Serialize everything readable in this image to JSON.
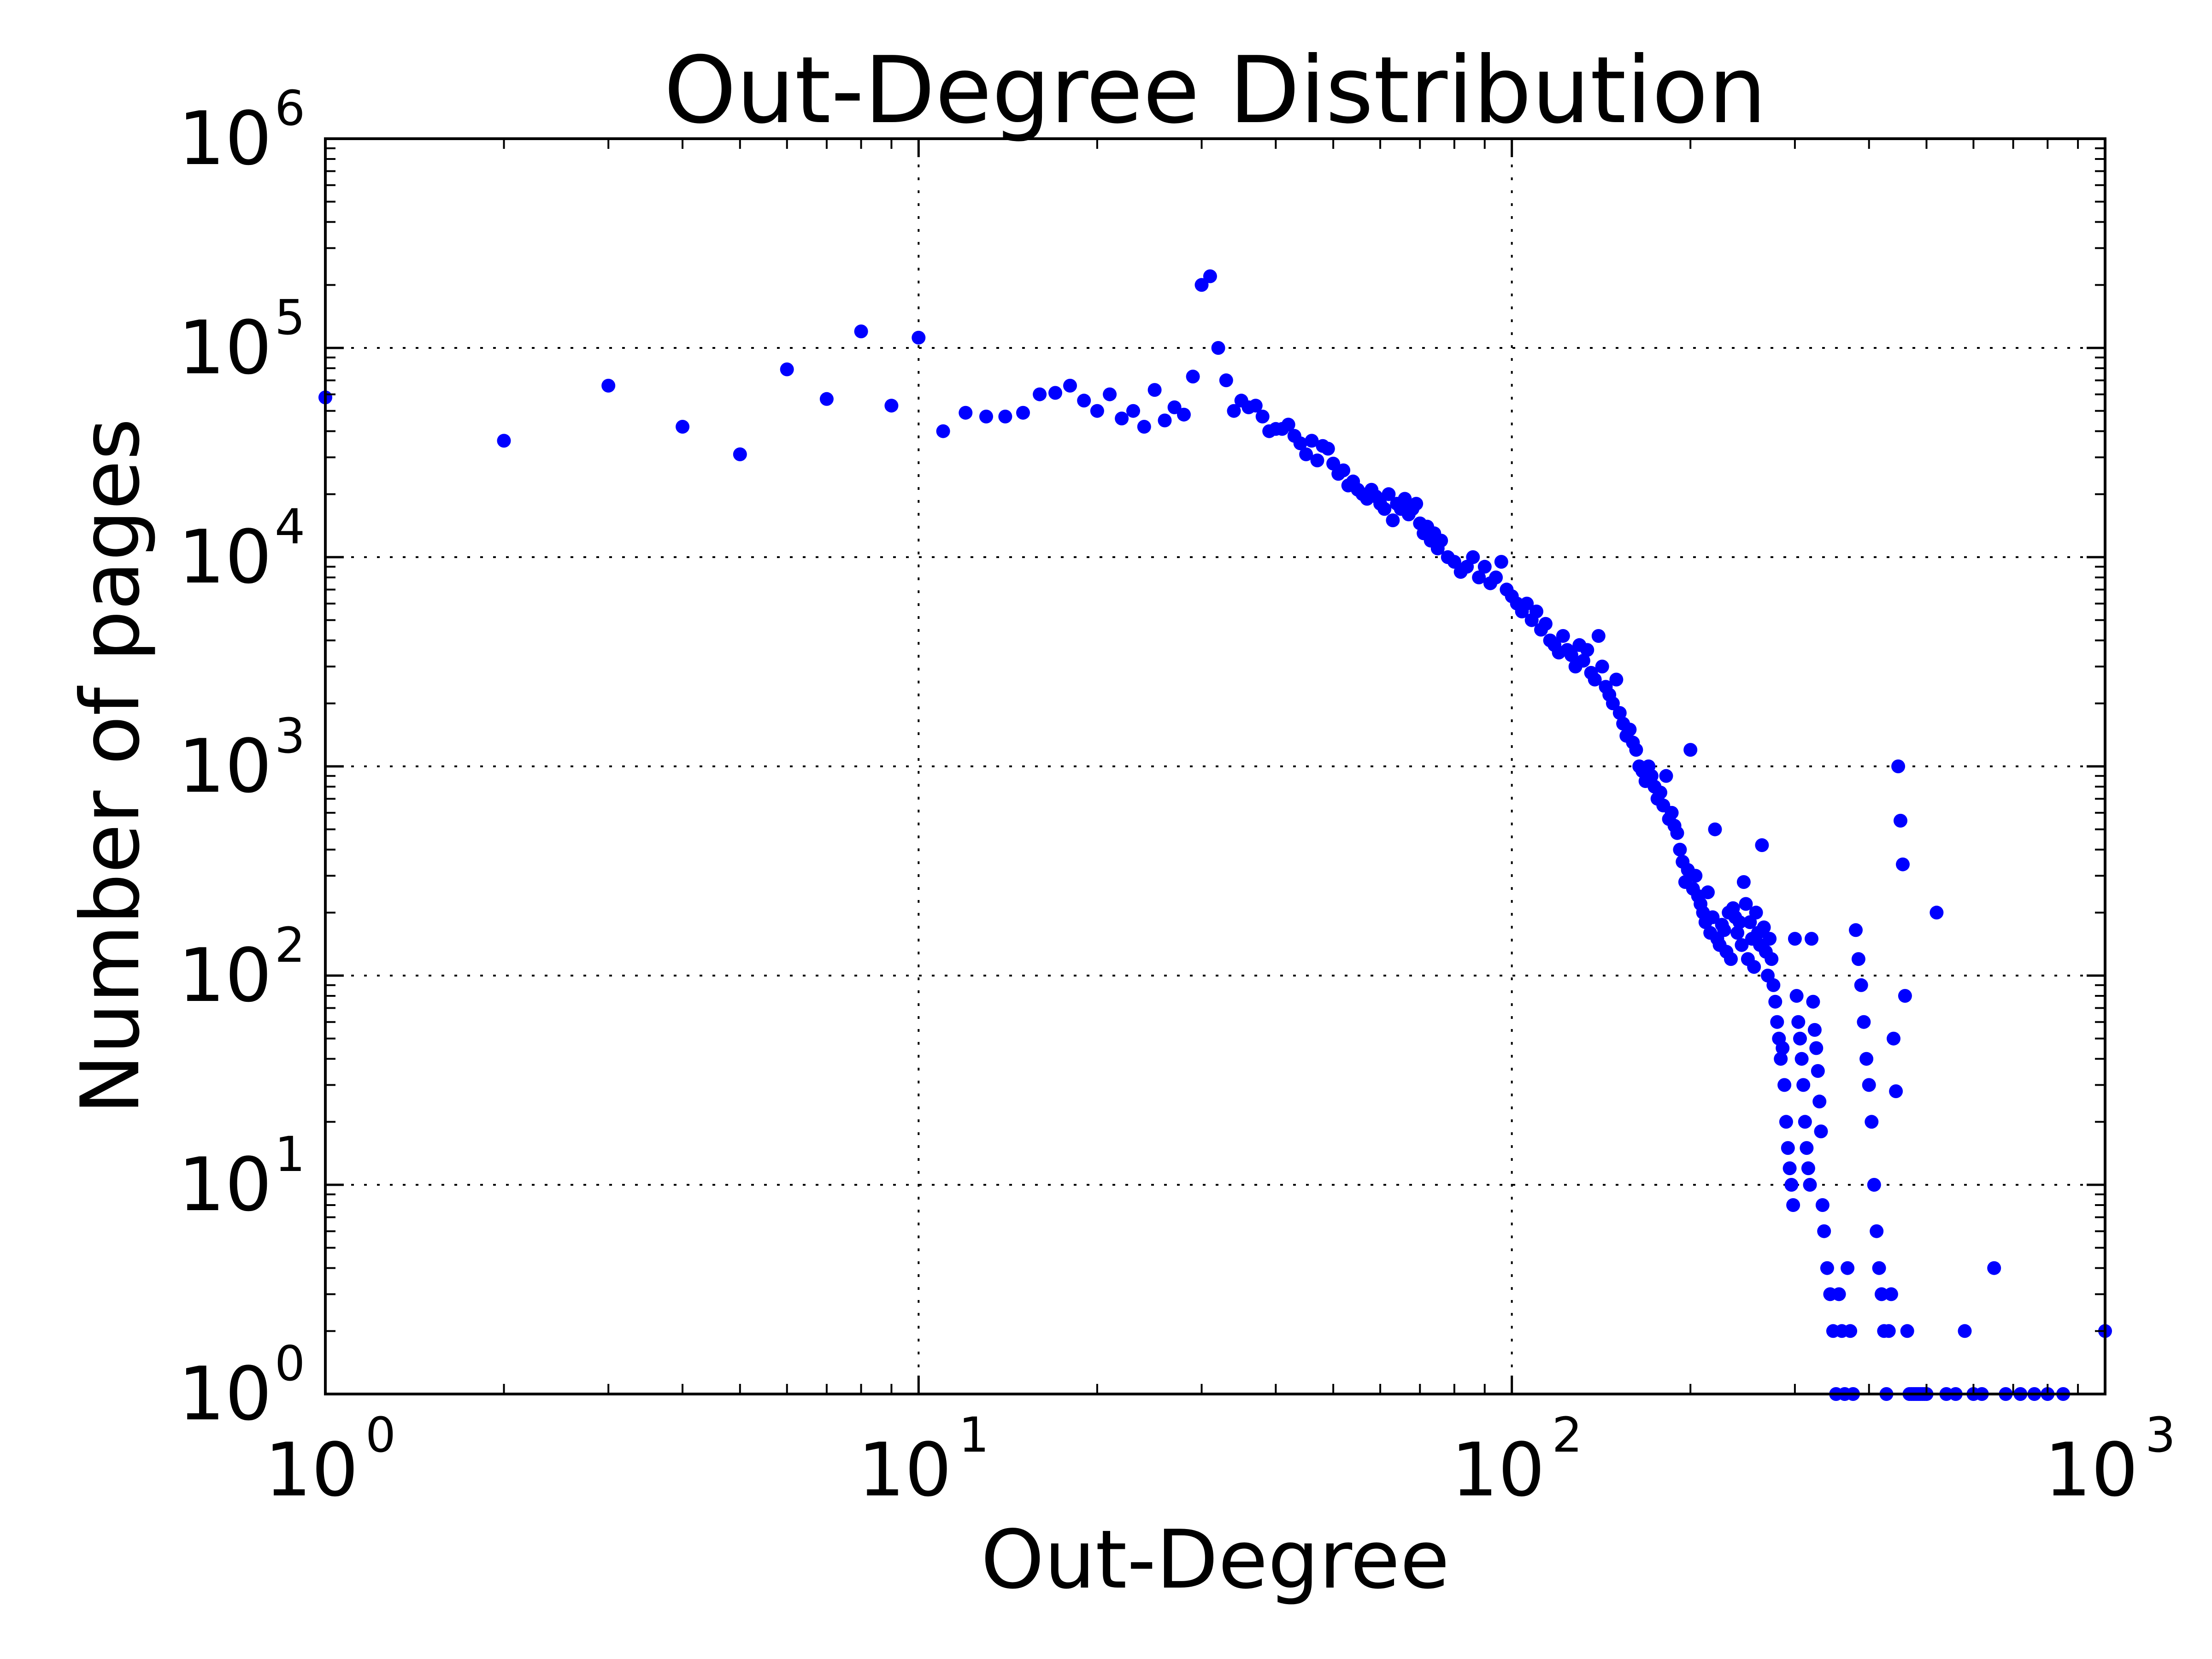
{
  "chart_data": {
    "type": "scatter",
    "title": "Out-Degree Distribution",
    "xlabel": "Out-Degree",
    "ylabel": "Number of pages",
    "x_scale": "log",
    "y_scale": "log",
    "xlim": [
      1,
      1000
    ],
    "ylim": [
      1,
      1000000
    ],
    "grid": true,
    "grid_style": "dotted",
    "marker_color": "#0000ff",
    "x_ticks": [
      {
        "base": "10",
        "exp": "0"
      },
      {
        "base": "10",
        "exp": "1"
      },
      {
        "base": "10",
        "exp": "2"
      },
      {
        "base": "10",
        "exp": "3"
      }
    ],
    "y_ticks": [
      {
        "base": "10",
        "exp": "0"
      },
      {
        "base": "10",
        "exp": "1"
      },
      {
        "base": "10",
        "exp": "2"
      },
      {
        "base": "10",
        "exp": "3"
      },
      {
        "base": "10",
        "exp": "4"
      },
      {
        "base": "10",
        "exp": "5"
      },
      {
        "base": "10",
        "exp": "6"
      }
    ],
    "points": [
      [
        1,
        58000
      ],
      [
        2,
        36000
      ],
      [
        3,
        66000
      ],
      [
        4,
        42000
      ],
      [
        5,
        31000
      ],
      [
        6,
        79000
      ],
      [
        7,
        57000
      ],
      [
        8,
        120000
      ],
      [
        9,
        53000
      ],
      [
        10,
        112000
      ],
      [
        11,
        40000
      ],
      [
        12,
        49000
      ],
      [
        13,
        47000
      ],
      [
        14,
        47000
      ],
      [
        15,
        49000
      ],
      [
        16,
        60000
      ],
      [
        17,
        61000
      ],
      [
        18,
        66000
      ],
      [
        19,
        56000
      ],
      [
        20,
        50000
      ],
      [
        21,
        60000
      ],
      [
        22,
        46000
      ],
      [
        23,
        50000
      ],
      [
        24,
        42000
      ],
      [
        25,
        63000
      ],
      [
        26,
        45000
      ],
      [
        27,
        52000
      ],
      [
        28,
        48000
      ],
      [
        29,
        73000
      ],
      [
        30,
        200000
      ],
      [
        31,
        220000
      ],
      [
        32,
        100000
      ],
      [
        33,
        70000
      ],
      [
        34,
        50000
      ],
      [
        35,
        56000
      ],
      [
        36,
        52000
      ],
      [
        37,
        53000
      ],
      [
        38,
        47000
      ],
      [
        39,
        40000
      ],
      [
        40,
        41000
      ],
      [
        41,
        41000
      ],
      [
        42,
        43000
      ],
      [
        43,
        38000
      ],
      [
        44,
        35000
      ],
      [
        45,
        31000
      ],
      [
        46,
        36000
      ],
      [
        47,
        29000
      ],
      [
        48,
        34000
      ],
      [
        49,
        33000
      ],
      [
        50,
        28000
      ],
      [
        51,
        25000
      ],
      [
        52,
        26000
      ],
      [
        53,
        22000
      ],
      [
        54,
        23000
      ],
      [
        55,
        21000
      ],
      [
        56,
        20000
      ],
      [
        57,
        19000
      ],
      [
        58,
        21000
      ],
      [
        59,
        19500
      ],
      [
        60,
        18000
      ],
      [
        61,
        17000
      ],
      [
        62,
        20000
      ],
      [
        63,
        15000
      ],
      [
        64,
        18000
      ],
      [
        65,
        17000
      ],
      [
        66,
        19000
      ],
      [
        67,
        16000
      ],
      [
        68,
        17000
      ],
      [
        69,
        18000
      ],
      [
        70,
        14500
      ],
      [
        71,
        13000
      ],
      [
        72,
        14000
      ],
      [
        73,
        12000
      ],
      [
        74,
        13000
      ],
      [
        75,
        11000
      ],
      [
        76,
        12000
      ],
      [
        78,
        10000
      ],
      [
        80,
        9500
      ],
      [
        82,
        8500
      ],
      [
        84,
        9000
      ],
      [
        86,
        10000
      ],
      [
        88,
        8000
      ],
      [
        90,
        9000
      ],
      [
        92,
        7500
      ],
      [
        94,
        8000
      ],
      [
        96,
        9500
      ],
      [
        98,
        7000
      ],
      [
        100,
        6500
      ],
      [
        102,
        6000
      ],
      [
        104,
        5500
      ],
      [
        106,
        6000
      ],
      [
        108,
        5000
      ],
      [
        110,
        5500
      ],
      [
        112,
        4500
      ],
      [
        114,
        4800
      ],
      [
        116,
        4000
      ],
      [
        118,
        3800
      ],
      [
        120,
        3500
      ],
      [
        122,
        4200
      ],
      [
        124,
        3600
      ],
      [
        126,
        3400
      ],
      [
        128,
        3000
      ],
      [
        130,
        3800
      ],
      [
        132,
        3200
      ],
      [
        134,
        3600
      ],
      [
        136,
        2800
      ],
      [
        138,
        2600
      ],
      [
        140,
        4200
      ],
      [
        142,
        3000
      ],
      [
        144,
        2400
      ],
      [
        146,
        2200
      ],
      [
        148,
        2000
      ],
      [
        150,
        2600
      ],
      [
        152,
        1800
      ],
      [
        154,
        1600
      ],
      [
        156,
        1400
      ],
      [
        158,
        1500
      ],
      [
        160,
        1300
      ],
      [
        162,
        1200
      ],
      [
        164,
        1000
      ],
      [
        166,
        950
      ],
      [
        168,
        850
      ],
      [
        170,
        1000
      ],
      [
        172,
        900
      ],
      [
        174,
        800
      ],
      [
        176,
        700
      ],
      [
        178,
        750
      ],
      [
        180,
        650
      ],
      [
        182,
        900
      ],
      [
        184,
        560
      ],
      [
        186,
        600
      ],
      [
        188,
        520
      ],
      [
        190,
        480
      ],
      [
        192,
        400
      ],
      [
        194,
        350
      ],
      [
        196,
        280
      ],
      [
        198,
        320
      ],
      [
        200,
        1200
      ],
      [
        202,
        260
      ],
      [
        204,
        300
      ],
      [
        206,
        240
      ],
      [
        208,
        220
      ],
      [
        210,
        200
      ],
      [
        212,
        180
      ],
      [
        214,
        250
      ],
      [
        216,
        160
      ],
      [
        218,
        190
      ],
      [
        220,
        500
      ],
      [
        222,
        150
      ],
      [
        224,
        140
      ],
      [
        226,
        175
      ],
      [
        228,
        165
      ],
      [
        230,
        130
      ],
      [
        232,
        200
      ],
      [
        234,
        120
      ],
      [
        236,
        210
      ],
      [
        238,
        190
      ],
      [
        240,
        160
      ],
      [
        242,
        180
      ],
      [
        244,
        140
      ],
      [
        246,
        280
      ],
      [
        248,
        220
      ],
      [
        250,
        120
      ],
      [
        252,
        180
      ],
      [
        254,
        150
      ],
      [
        256,
        110
      ],
      [
        258,
        200
      ],
      [
        260,
        160
      ],
      [
        262,
        140
      ],
      [
        264,
        420
      ],
      [
        266,
        170
      ],
      [
        268,
        130
      ],
      [
        270,
        100
      ],
      [
        272,
        150
      ],
      [
        274,
        120
      ],
      [
        276,
        90
      ],
      [
        278,
        75
      ],
      [
        280,
        60
      ],
      [
        282,
        50
      ],
      [
        284,
        40
      ],
      [
        286,
        45
      ],
      [
        288,
        30
      ],
      [
        290,
        20
      ],
      [
        292,
        15
      ],
      [
        294,
        12
      ],
      [
        296,
        10
      ],
      [
        298,
        8
      ],
      [
        300,
        150
      ],
      [
        302,
        80
      ],
      [
        304,
        60
      ],
      [
        306,
        50
      ],
      [
        308,
        40
      ],
      [
        310,
        30
      ],
      [
        312,
        20
      ],
      [
        314,
        15
      ],
      [
        316,
        12
      ],
      [
        318,
        10
      ],
      [
        320,
        150
      ],
      [
        322,
        75
      ],
      [
        324,
        55
      ],
      [
        326,
        45
      ],
      [
        328,
        35
      ],
      [
        330,
        25
      ],
      [
        332,
        18
      ],
      [
        334,
        8
      ],
      [
        336,
        6
      ],
      [
        340,
        4
      ],
      [
        344,
        3
      ],
      [
        348,
        2
      ],
      [
        352,
        1
      ],
      [
        356,
        3
      ],
      [
        360,
        2
      ],
      [
        364,
        1
      ],
      [
        368,
        4
      ],
      [
        372,
        2
      ],
      [
        376,
        1
      ],
      [
        380,
        165
      ],
      [
        384,
        120
      ],
      [
        388,
        90
      ],
      [
        392,
        60
      ],
      [
        396,
        40
      ],
      [
        400,
        30
      ],
      [
        404,
        20
      ],
      [
        408,
        10
      ],
      [
        412,
        6
      ],
      [
        416,
        4
      ],
      [
        420,
        3
      ],
      [
        424,
        2
      ],
      [
        428,
        1
      ],
      [
        432,
        2
      ],
      [
        436,
        3
      ],
      [
        440,
        50
      ],
      [
        444,
        28
      ],
      [
        448,
        1000
      ],
      [
        452,
        550
      ],
      [
        456,
        340
      ],
      [
        460,
        80
      ],
      [
        464,
        2
      ],
      [
        468,
        1
      ],
      [
        472,
        1
      ],
      [
        476,
        1
      ],
      [
        480,
        1
      ],
      [
        484,
        1
      ],
      [
        488,
        1
      ],
      [
        492,
        1
      ],
      [
        496,
        1
      ],
      [
        500,
        1
      ],
      [
        520,
        200
      ],
      [
        540,
        1
      ],
      [
        560,
        1
      ],
      [
        580,
        2
      ],
      [
        600,
        1
      ],
      [
        620,
        1
      ],
      [
        650,
        4
      ],
      [
        680,
        1
      ],
      [
        720,
        1
      ],
      [
        760,
        1
      ],
      [
        800,
        1
      ],
      [
        850,
        1
      ],
      [
        1000,
        2
      ]
    ]
  }
}
